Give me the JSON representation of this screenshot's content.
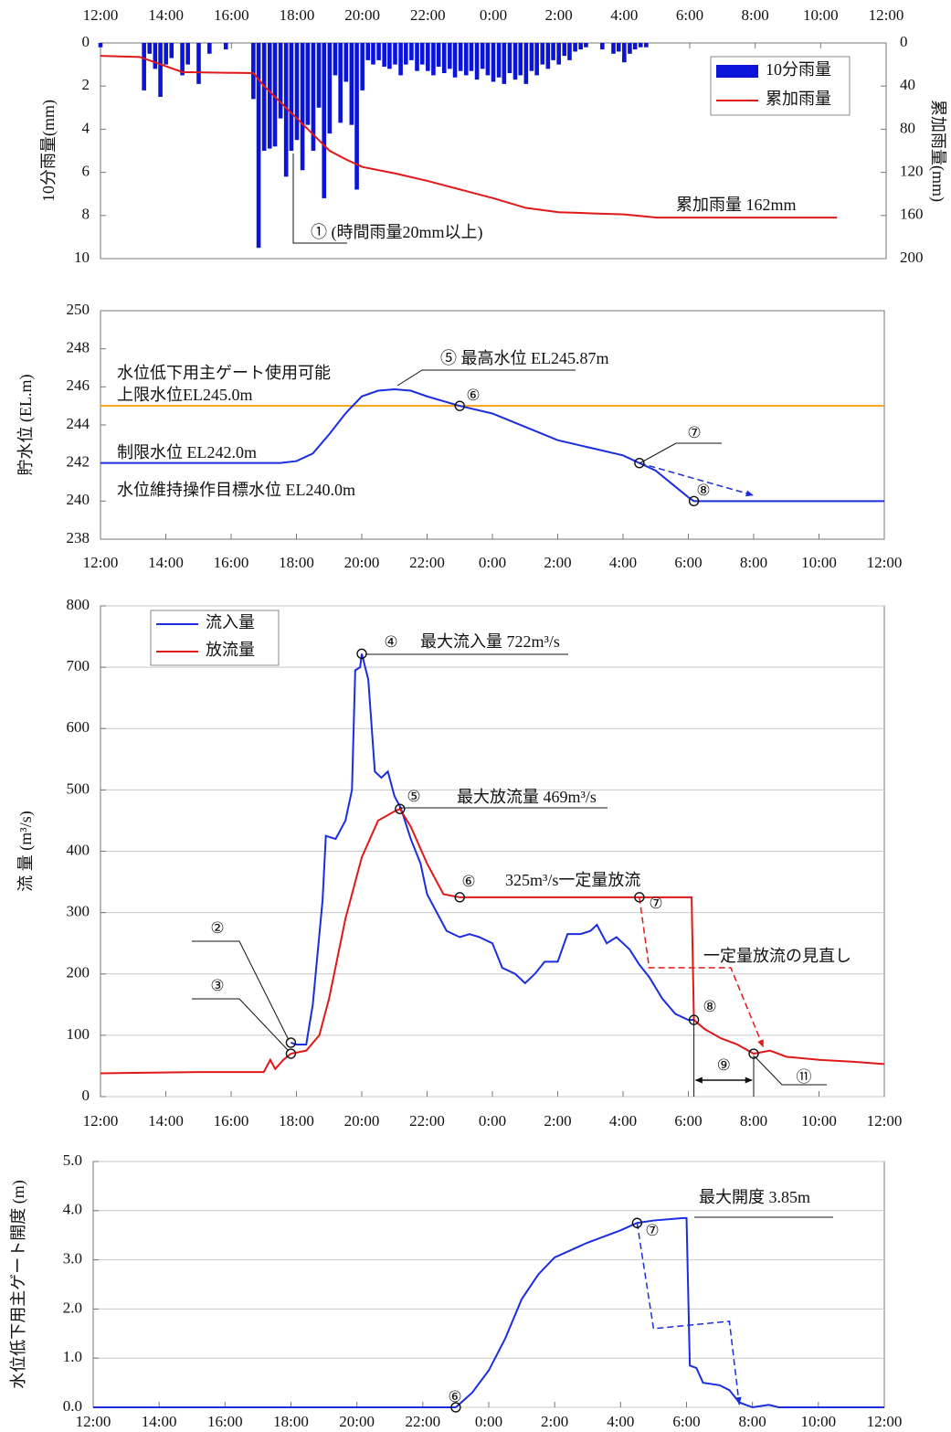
{
  "chart_data": [
    {
      "type": "combo",
      "xlim": [
        0,
        24
      ],
      "xticks": [
        {
          "value": 0,
          "label": "12:00"
        },
        {
          "value": 2,
          "label": "14:00"
        },
        {
          "value": 4,
          "label": "16:00"
        },
        {
          "value": 6,
          "label": "18:00"
        },
        {
          "value": 8,
          "label": "20:00"
        },
        {
          "value": 10,
          "label": "22:00"
        },
        {
          "value": 12,
          "label": "0:00"
        },
        {
          "value": 14,
          "label": "2:00"
        },
        {
          "value": 16,
          "label": "4:00"
        },
        {
          "value": 18,
          "label": "6:00"
        },
        {
          "value": 20,
          "label": "8:00"
        },
        {
          "value": 22,
          "label": "10:00"
        },
        {
          "value": 24,
          "label": "12:00"
        }
      ],
      "ylabel": "10分雨量(mm)",
      "ylim": [
        0,
        10
      ],
      "yticks": [
        0,
        2,
        4,
        6,
        8,
        10
      ],
      "invert_y": true,
      "y2label": "累加雨量(mm)",
      "y2lim": [
        0,
        200
      ],
      "y2ticks": [
        0,
        40,
        80,
        120,
        160,
        200
      ],
      "grid": false,
      "legend": true,
      "series": [
        {
          "name": "10分雨量",
          "type": "bar",
          "color": "#0a14d8",
          "x": [
            0,
            1.33,
            1.5,
            1.67,
            1.83,
            2.0,
            2.17,
            2.5,
            2.67,
            3.0,
            3.33,
            3.83,
            4.67,
            4.83,
            5.0,
            5.17,
            5.33,
            5.5,
            5.67,
            5.83,
            6.0,
            6.17,
            6.33,
            6.5,
            6.67,
            6.83,
            7.0,
            7.17,
            7.33,
            7.5,
            7.67,
            7.83,
            8.0,
            8.17,
            8.33,
            8.5,
            8.67,
            8.83,
            9.0,
            9.17,
            9.33,
            9.5,
            9.67,
            9.83,
            10.0,
            10.17,
            10.33,
            10.5,
            10.67,
            10.83,
            11.0,
            11.17,
            11.33,
            11.5,
            11.67,
            11.83,
            12.0,
            12.17,
            12.33,
            12.5,
            12.67,
            12.83,
            13.0,
            13.17,
            13.33,
            13.5,
            13.67,
            13.83,
            14.0,
            14.17,
            14.33,
            14.5,
            14.67,
            14.83,
            15.33,
            15.67,
            15.83,
            16.0,
            16.17,
            16.33,
            16.5,
            16.67
          ],
          "values": [
            0.2,
            2.2,
            0.5,
            1.2,
            2.5,
            1.0,
            0.7,
            1.5,
            1.0,
            1.9,
            0.5,
            0.3,
            2.6,
            9.5,
            5.0,
            4.9,
            4.8,
            3.5,
            6.2,
            5.0,
            4.5,
            5.9,
            3.8,
            5.0,
            3.0,
            7.2,
            4.2,
            1.5,
            3.7,
            1.8,
            3.8,
            6.8,
            2.2,
            0.8,
            1.0,
            0.8,
            1.1,
            1.2,
            1.0,
            1.5,
            1.0,
            0.8,
            1.3,
            1.0,
            1.3,
            1.5,
            1.1,
            1.4,
            1.2,
            1.6,
            1.3,
            1.5,
            1.3,
            1.7,
            1.2,
            1.5,
            1.8,
            1.6,
            1.9,
            1.4,
            1.7,
            1.5,
            1.9,
            1.3,
            1.5,
            1.0,
            1.2,
            0.8,
            1.0,
            0.6,
            0.8,
            0.4,
            0.3,
            0.2,
            0.3,
            0.5,
            0.4,
            0.9,
            0.5,
            0.3,
            0.2,
            0.2
          ]
        },
        {
          "name": "累加雨量",
          "type": "line",
          "axis": "y2",
          "color": "#e01818",
          "x": [
            0,
            1.2,
            2.5,
            4.67,
            5.0,
            5.5,
            6.0,
            6.5,
            7.0,
            7.5,
            8.0,
            9.0,
            10.0,
            11.0,
            12.0,
            13.0,
            14.0,
            15.0,
            16.0,
            17.0,
            22.5
          ],
          "values": [
            12,
            13,
            27,
            28,
            40,
            55,
            70,
            85,
            100,
            108,
            115,
            121,
            128,
            136,
            144,
            153,
            157,
            158,
            159,
            162,
            162
          ]
        }
      ],
      "annotations": [
        "累加雨量 162mm",
        "①  (時間雨量20mm以上)"
      ]
    },
    {
      "type": "line",
      "xlim": [
        0,
        24
      ],
      "xticks": [
        {
          "value": 0,
          "label": "12:00"
        },
        {
          "value": 2,
          "label": "14:00"
        },
        {
          "value": 4,
          "label": "16:00"
        },
        {
          "value": 6,
          "label": "18:00"
        },
        {
          "value": 8,
          "label": "20:00"
        },
        {
          "value": 10,
          "label": "22:00"
        },
        {
          "value": 12,
          "label": "0:00"
        },
        {
          "value": 14,
          "label": "2:00"
        },
        {
          "value": 16,
          "label": "4:00"
        },
        {
          "value": 18,
          "label": "6:00"
        },
        {
          "value": 20,
          "label": "8:00"
        },
        {
          "value": 22,
          "label": "10:00"
        },
        {
          "value": 24,
          "label": "12:00"
        }
      ],
      "ylabel": "貯水位 (EL.m)",
      "ylim": [
        238,
        250
      ],
      "yticks": [
        238,
        240,
        242,
        244,
        246,
        248,
        250
      ],
      "grid": false,
      "legend": false,
      "hlines": [
        {
          "value": 245.0,
          "color": "#f2a31b"
        }
      ],
      "series": [
        {
          "type": "line",
          "color": "#1a2ee0",
          "x": [
            0,
            5.5,
            6.0,
            6.5,
            7.0,
            7.5,
            8.0,
            8.5,
            9.0,
            9.5,
            10.0,
            11.0,
            12.0,
            13.0,
            14.0,
            15.0,
            16.0,
            16.5,
            17.0,
            17.5,
            18.0,
            18.17,
            24
          ],
          "values": [
            242.0,
            242.0,
            242.1,
            242.5,
            243.5,
            244.6,
            245.5,
            245.8,
            245.87,
            245.8,
            245.5,
            245.0,
            244.6,
            243.9,
            243.2,
            242.8,
            242.4,
            242.0,
            241.6,
            240.9,
            240.2,
            240.0,
            240.0
          ]
        },
        {
          "type": "line",
          "dash": true,
          "color": "#1a2ee0",
          "x": [
            16.5,
            20.0
          ],
          "values": [
            242.0,
            240.3
          ]
        }
      ],
      "markers": [
        {
          "x": 11.0,
          "y": 245.0,
          "label": "⑥"
        },
        {
          "x": 16.5,
          "y": 242.0,
          "label": "⑦"
        },
        {
          "x": 18.17,
          "y": 240.0,
          "label": "⑧"
        }
      ],
      "annotations": [
        "水位低下用主ゲート使用可能",
        "上限水位EL245.0m",
        "制限水位 EL242.0m",
        "水位維持操作目標水位 EL240.0m",
        "⑤ 最高水位 EL245.87m"
      ]
    },
    {
      "type": "line",
      "xlim": [
        0,
        24
      ],
      "xticks": [
        {
          "value": 0,
          "label": "12:00"
        },
        {
          "value": 2,
          "label": "14:00"
        },
        {
          "value": 4,
          "label": "16:00"
        },
        {
          "value": 6,
          "label": "18:00"
        },
        {
          "value": 8,
          "label": "20:00"
        },
        {
          "value": 10,
          "label": "22:00"
        },
        {
          "value": 12,
          "label": "0:00"
        },
        {
          "value": 14,
          "label": "2:00"
        },
        {
          "value": 16,
          "label": "4:00"
        },
        {
          "value": 18,
          "label": "6:00"
        },
        {
          "value": 20,
          "label": "8:00"
        },
        {
          "value": 22,
          "label": "10:00"
        },
        {
          "value": 24,
          "label": "12:00"
        }
      ],
      "ylabel": "流 量 (m³/s)",
      "ylim": [
        0,
        800
      ],
      "yticks": [
        0,
        100,
        200,
        300,
        400,
        500,
        600,
        700,
        800
      ],
      "grid": true,
      "legend": true,
      "series": [
        {
          "name": "流入量",
          "type": "line",
          "color": "#1a2ee0",
          "x": [
            5.83,
            6.0,
            6.3,
            6.5,
            6.8,
            6.9,
            7.2,
            7.5,
            7.7,
            7.8,
            7.95,
            8.0,
            8.2,
            8.4,
            8.6,
            8.8,
            9.0,
            9.2,
            9.5,
            9.8,
            10.0,
            10.3,
            10.6,
            11.0,
            11.3,
            11.6,
            12.0,
            12.3,
            12.7,
            13.0,
            13.3,
            13.6,
            14.0,
            14.3,
            14.7,
            15.0,
            15.2,
            15.5,
            15.8,
            16.2,
            16.5,
            16.8,
            17.2,
            17.6,
            18.0,
            18.17
          ],
          "values": [
            88,
            85,
            85,
            150,
            320,
            425,
            420,
            450,
            500,
            695,
            700,
            722,
            680,
            530,
            520,
            530,
            490,
            470,
            420,
            380,
            330,
            300,
            270,
            260,
            265,
            260,
            250,
            210,
            200,
            185,
            200,
            220,
            220,
            265,
            265,
            270,
            280,
            250,
            260,
            240,
            215,
            195,
            160,
            135,
            125,
            125
          ]
        },
        {
          "name": "放流量",
          "type": "line",
          "color": "#e01818",
          "x": [
            0,
            3,
            5.0,
            5.2,
            5.35,
            5.6,
            5.83,
            6.3,
            6.7,
            7.0,
            7.5,
            8.0,
            8.5,
            9.0,
            9.17,
            9.5,
            10.0,
            10.5,
            11.0,
            16.5,
            18.1,
            18.17,
            18.5,
            19.0,
            19.5,
            20.0,
            20.5,
            21.0,
            22.0,
            23.0,
            24.0
          ],
          "values": [
            38,
            40,
            40,
            60,
            45,
            60,
            70,
            75,
            100,
            160,
            290,
            390,
            450,
            465,
            469,
            440,
            380,
            330,
            325,
            325,
            325,
            125,
            110,
            95,
            85,
            70,
            75,
            65,
            60,
            57,
            53
          ]
        },
        {
          "type": "line",
          "dash": true,
          "color": "#e01818",
          "x": [
            16.5,
            16.8,
            19.3,
            20.3
          ],
          "values": [
            325,
            210,
            210,
            80
          ]
        }
      ],
      "markers": [
        {
          "x": 5.83,
          "y": 88,
          "label": "②"
        },
        {
          "x": 5.83,
          "y": 70,
          "label": "③"
        },
        {
          "x": 8.0,
          "y": 722,
          "label": "④"
        },
        {
          "x": 9.17,
          "y": 469,
          "label": "⑤"
        },
        {
          "x": 11.0,
          "y": 325,
          "label": "⑥"
        },
        {
          "x": 16.5,
          "y": 325,
          "label": "⑦"
        },
        {
          "x": 18.17,
          "y": 125,
          "label": "⑧"
        },
        {
          "x": 20.0,
          "y": 70,
          "label": "⑪"
        }
      ],
      "spans": [
        {
          "x": [
            18.17,
            20.0
          ],
          "label": "⑨"
        }
      ],
      "annotations": [
        "最大流入量 722m³/s",
        "最大放流量 469m³/s",
        "325m³/s一定量放流",
        "一定量放流の見直し"
      ]
    },
    {
      "type": "line",
      "xlim": [
        0,
        24
      ],
      "xticks": [
        {
          "value": 0,
          "label": "12:00"
        },
        {
          "value": 2,
          "label": "14:00"
        },
        {
          "value": 4,
          "label": "16:00"
        },
        {
          "value": 6,
          "label": "18:00"
        },
        {
          "value": 8,
          "label": "20:00"
        },
        {
          "value": 10,
          "label": "22:00"
        },
        {
          "value": 12,
          "label": "0:00"
        },
        {
          "value": 14,
          "label": "2:00"
        },
        {
          "value": 16,
          "label": "4:00"
        },
        {
          "value": 18,
          "label": "6:00"
        },
        {
          "value": 20,
          "label": "8:00"
        },
        {
          "value": 22,
          "label": "10:00"
        },
        {
          "value": 24,
          "label": "12:00"
        }
      ],
      "ylabel": "水位低下用主ゲート開度 (m)",
      "ylim": [
        0,
        5
      ],
      "yticks": [
        {
          "value": 0,
          "label": "0.0"
        },
        {
          "value": 1,
          "label": "1.0"
        },
        {
          "value": 2,
          "label": "2.0"
        },
        {
          "value": 3,
          "label": "3.0"
        },
        {
          "value": 4,
          "label": "4.0"
        },
        {
          "value": 5,
          "label": "5.0"
        }
      ],
      "grid": true,
      "legend": false,
      "series": [
        {
          "type": "line",
          "color": "#1a2ee0",
          "x": [
            0,
            11.0,
            11.5,
            12.0,
            12.5,
            13.0,
            13.5,
            14.0,
            15.0,
            16.0,
            16.5,
            17.0,
            17.9,
            18.0,
            18.1,
            18.3,
            18.5,
            19.0,
            19.3,
            19.6,
            19.8,
            20.0,
            20.5,
            20.8,
            24
          ],
          "values": [
            0,
            0,
            0.3,
            0.75,
            1.4,
            2.2,
            2.7,
            3.05,
            3.35,
            3.6,
            3.75,
            3.8,
            3.85,
            3.85,
            0.85,
            0.8,
            0.5,
            0.45,
            0.35,
            0.1,
            0.05,
            0,
            0.05,
            0,
            0
          ]
        },
        {
          "type": "line",
          "dash": true,
          "color": "#1a2ee0",
          "x": [
            16.5,
            17.0,
            19.3,
            19.6
          ],
          "values": [
            3.75,
            1.6,
            1.75,
            0.05
          ]
        }
      ],
      "markers": [
        {
          "x": 11.0,
          "y": 0,
          "label": "⑥"
        },
        {
          "x": 16.5,
          "y": 3.75,
          "label": "⑦"
        }
      ],
      "annotations": [
        "最大開度 3.85m"
      ]
    }
  ]
}
